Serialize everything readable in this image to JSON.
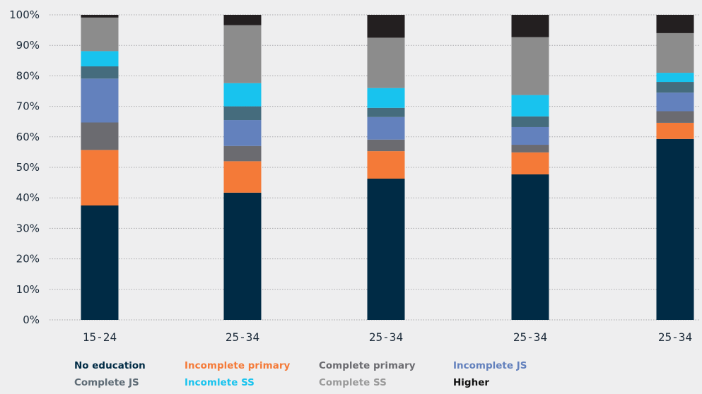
{
  "chart_data": {
    "type": "bar",
    "stacked": true,
    "categories": [
      "15-24",
      "25-34",
      "25-34",
      "25-34",
      "25-34"
    ],
    "ylim": [
      0,
      100
    ],
    "ytick_labels": [
      "0%",
      "10%",
      "20%",
      "30%",
      "40%",
      "50%",
      "60%",
      "70%",
      "80%",
      "90%",
      "100%"
    ],
    "grid": "horizontal dotted",
    "legend_position": "bottom",
    "series": [
      {
        "name": "No education",
        "color": "#002b45",
        "values": [
          37.5,
          41.7,
          46.3,
          47.7,
          59.3
        ]
      },
      {
        "name": "Incomplete primary",
        "color": "#f47a38",
        "values": [
          18.2,
          10.3,
          9.0,
          7.2,
          5.3
        ]
      },
      {
        "name": "Complete primary",
        "color": "#6b6b70",
        "values": [
          9.0,
          5.0,
          3.8,
          2.5,
          3.8
        ]
      },
      {
        "name": "Incomplete JS",
        "color": "#6381bd",
        "values": [
          14.4,
          8.5,
          7.4,
          5.8,
          6.1
        ]
      },
      {
        "name": "Complete JS",
        "color": "#456c7d",
        "values": [
          4.0,
          4.5,
          3.0,
          3.5,
          3.5
        ]
      },
      {
        "name": "Incomlete SS",
        "color": "#18c3ee",
        "values": [
          5.0,
          7.6,
          6.5,
          7.0,
          3.0
        ]
      },
      {
        "name": "Complete SS",
        "color": "#8c8c8c",
        "values": [
          11.0,
          19.0,
          16.5,
          19.0,
          13.0
        ]
      },
      {
        "name": "Higher",
        "color": "#231f20",
        "values": [
          0.9,
          3.4,
          7.5,
          7.3,
          6.0
        ]
      }
    ]
  },
  "legend": {
    "items": [
      {
        "label": "No education",
        "color": "#002b45"
      },
      {
        "label": "Incomplete primary",
        "color": "#f47a38"
      },
      {
        "label": "Complete primary",
        "color": "#6b6b70"
      },
      {
        "label": "Incomplete JS",
        "color": "#6381bd"
      },
      {
        "label": "Complete JS",
        "color": "#5f6c76"
      },
      {
        "label": "Incomlete SS",
        "color": "#18c3ee"
      },
      {
        "label": "Complete SS",
        "color": "#9a9a9a"
      },
      {
        "label": "Higher",
        "color": "#111111"
      }
    ]
  }
}
